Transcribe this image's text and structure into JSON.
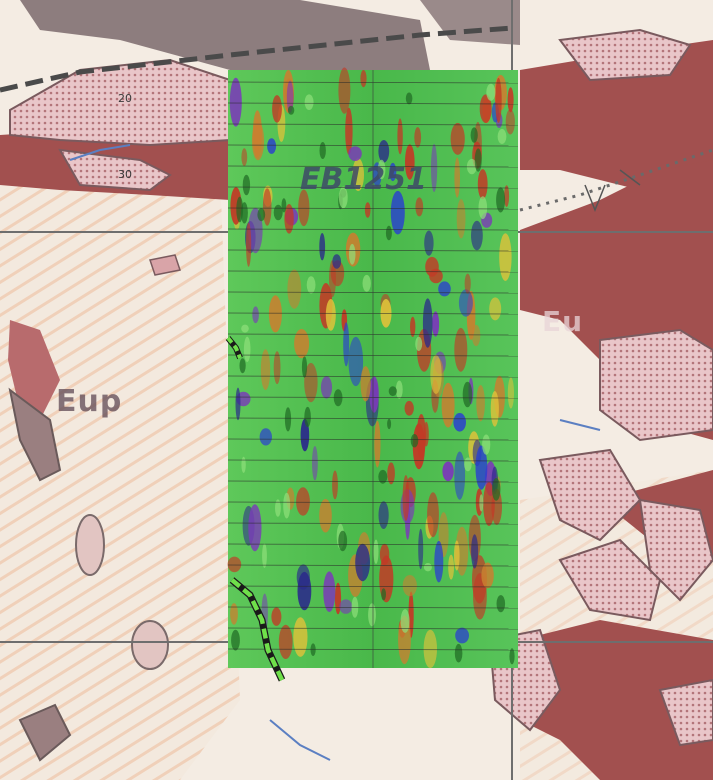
{
  "map": {
    "labels": {
      "unit_eup": "Eup",
      "unit_eu": "Eu",
      "grid_id": "EB1251",
      "unit_20": "20",
      "unit_30": "30"
    },
    "colors": {
      "background": "#f4ece3",
      "dark_red_unit": "#a2504f",
      "pink_unit": "#e7c3c6",
      "grey_unit": "#8d7d7e",
      "magnetic_low": "#2a3fd0",
      "magnetic_mid": "#3fbf4a",
      "magnetic_high": "#c23a26",
      "fault_dashed": "#4a4a4a",
      "trace_green": "#6fe04a"
    }
  }
}
